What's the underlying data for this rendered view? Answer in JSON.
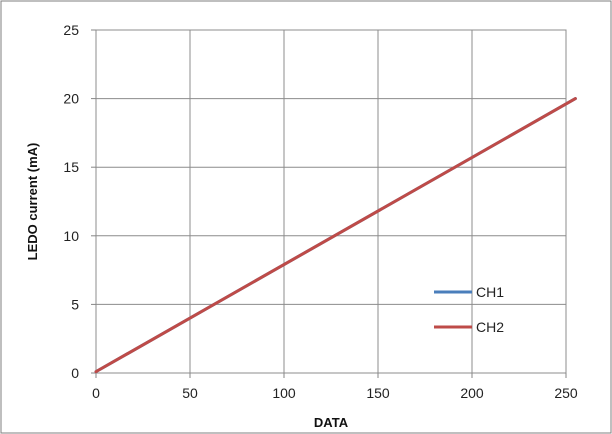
{
  "chart_data": {
    "type": "line",
    "xlabel": "DATA",
    "ylabel": "LEDO current (mA)",
    "xlim": [
      0,
      250
    ],
    "ylim": [
      0,
      25
    ],
    "xticks": [
      0,
      50,
      100,
      150,
      200,
      250
    ],
    "yticks": [
      0,
      5,
      10,
      15,
      20,
      25
    ],
    "grid": true,
    "legend_position": "lower-right",
    "series": [
      {
        "name": "CH1",
        "color": "#4a7ebb",
        "x": [
          0,
          255
        ],
        "y": [
          0.1,
          20
        ]
      },
      {
        "name": "CH2",
        "color": "#be4b48",
        "x": [
          0,
          255
        ],
        "y": [
          0.1,
          20
        ]
      }
    ]
  }
}
